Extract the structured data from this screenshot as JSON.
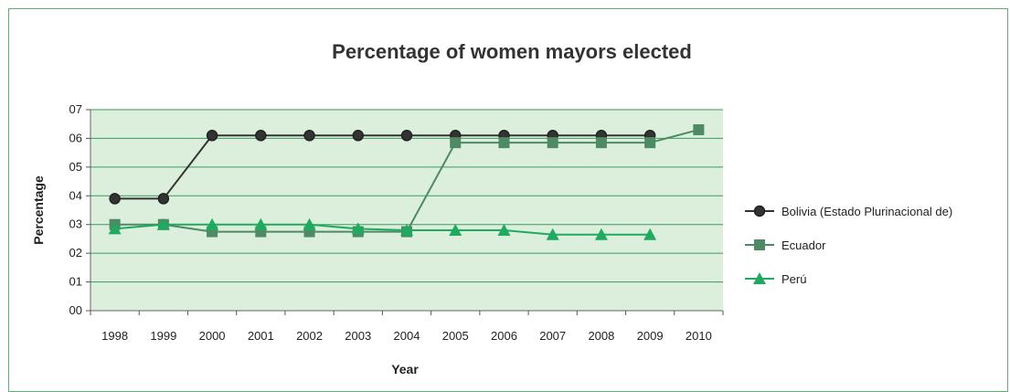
{
  "chart_data": {
    "type": "line",
    "title": "Percentage of women mayors elected",
    "xlabel": "Year",
    "ylabel": "Percentage",
    "categories": [
      "1998",
      "1999",
      "2000",
      "2001",
      "2002",
      "2003",
      "2004",
      "2005",
      "2006",
      "2007",
      "2008",
      "2009",
      "2010"
    ],
    "yticks": [
      "00",
      "01",
      "02",
      "03",
      "04",
      "05",
      "06",
      "07"
    ],
    "ylim": [
      0,
      7
    ],
    "grid": true,
    "legend_position": "right",
    "plot_background": "#dcefdc",
    "series": [
      {
        "name": "Bolivia (Estado Plurinacional de)",
        "color": "#333333",
        "marker": "circle",
        "values": [
          3.9,
          3.9,
          6.1,
          6.1,
          6.1,
          6.1,
          6.1,
          6.1,
          6.1,
          6.1,
          6.1,
          6.1,
          null
        ]
      },
      {
        "name": "Ecuador",
        "color": "#4e8a63",
        "marker": "square",
        "values": [
          3.0,
          3.0,
          2.75,
          2.75,
          2.75,
          2.75,
          2.75,
          5.85,
          5.85,
          5.85,
          5.85,
          5.85,
          6.3
        ]
      },
      {
        "name": "Perú",
        "color": "#1faa5f",
        "marker": "triangle",
        "values": [
          2.85,
          3.0,
          3.0,
          3.0,
          3.0,
          2.85,
          2.8,
          2.8,
          2.8,
          2.65,
          2.65,
          2.65,
          null
        ]
      }
    ]
  }
}
